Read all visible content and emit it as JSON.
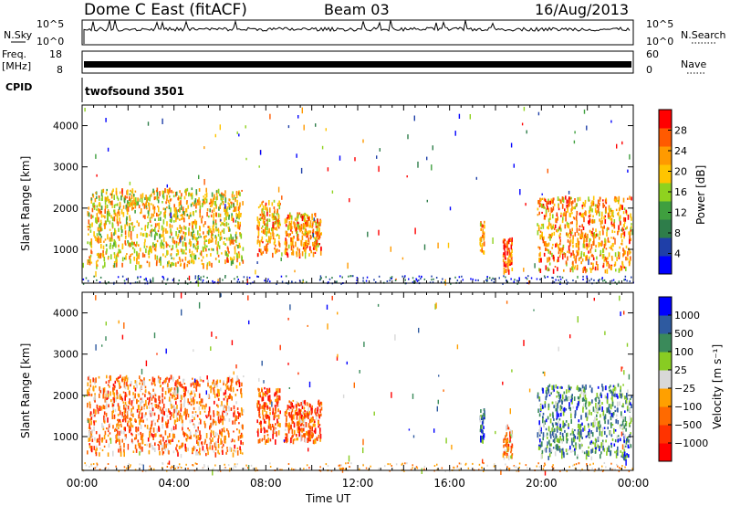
{
  "header": {
    "title": "Dome C East (fitACF)",
    "beam": "Beam 03",
    "date": "16/Aug/2013"
  },
  "top_panels": {
    "nsky_label": "N.Sky",
    "nsearch_label": "N.Search",
    "noise_ticks": [
      "10^5",
      "10^0"
    ],
    "freq_label_1": "Freq.",
    "freq_label_2": "[MHz]",
    "freq_ticks": [
      "18",
      "8"
    ],
    "nave_label": "Nave",
    "nave_ticks": [
      "60",
      "0"
    ],
    "cpid_label": "CPID",
    "cpid_value": "twofsound 3501"
  },
  "colors": {
    "power_scale": [
      "#0000ff",
      "#1f3fa8",
      "#2e7d4a",
      "#3f9f3f",
      "#8fd21f",
      "#ffc400",
      "#ff9a00",
      "#ff5a00",
      "#ff0000"
    ],
    "velocity_scale": [
      "#ff0000",
      "#ff3300",
      "#ff6a00",
      "#ffa000",
      "#d8d8d8",
      "#88cc22",
      "#3a8a5a",
      "#2e5aa0",
      "#0000ff"
    ]
  },
  "chart_data": [
    {
      "type": "heatmap",
      "name": "power",
      "xlabel": "",
      "ylabel": "Slant Range [km]",
      "xlim": [
        0,
        24
      ],
      "ylim": [
        180,
        4500
      ],
      "yticks": [
        1000,
        2000,
        3000,
        4000
      ],
      "colorbar_label": "Power [dB]",
      "colorbar_ticks": [
        "28",
        "24",
        "20",
        "16",
        "12",
        "8",
        "4"
      ],
      "echo_regions": [
        {
          "t0": 0.2,
          "t1": 7.0,
          "r0": 600,
          "r1": 2500,
          "level": 0.62
        },
        {
          "t0": 7.6,
          "t1": 8.6,
          "r0": 900,
          "r1": 2200,
          "level": 0.7
        },
        {
          "t0": 8.8,
          "t1": 10.4,
          "r0": 900,
          "r1": 1900,
          "level": 0.75
        },
        {
          "t0": 17.3,
          "t1": 17.5,
          "r0": 900,
          "r1": 1700,
          "level": 0.7
        },
        {
          "t0": 18.3,
          "t1": 18.7,
          "r0": 500,
          "r1": 1300,
          "level": 0.85
        },
        {
          "t0": 19.8,
          "t1": 23.9,
          "r0": 500,
          "r1": 2300,
          "level": 0.72
        }
      ]
    },
    {
      "type": "heatmap",
      "name": "velocity",
      "xlabel": "Time UT",
      "ylabel": "Slant Range [km]",
      "xlim": [
        0,
        24
      ],
      "ylim": [
        180,
        4500
      ],
      "xticks": [
        "00:00",
        "04:00",
        "08:00",
        "12:00",
        "16:00",
        "20:00",
        "00:00"
      ],
      "yticks": [
        1000,
        2000,
        3000,
        4000
      ],
      "colorbar_label": "Velocity [m s⁻¹]",
      "colorbar_ticks": [
        "1000",
        "500",
        "100",
        "25",
        "−25",
        "−100",
        "−500",
        "−1000"
      ],
      "echo_regions": [
        {
          "t0": 0.2,
          "t1": 7.0,
          "r0": 600,
          "r1": 2500,
          "level": 0.3
        },
        {
          "t0": 7.6,
          "t1": 8.6,
          "r0": 900,
          "r1": 2200,
          "level": 0.25
        },
        {
          "t0": 8.8,
          "t1": 10.4,
          "r0": 900,
          "r1": 1900,
          "level": 0.25
        },
        {
          "t0": 17.3,
          "t1": 17.5,
          "r0": 900,
          "r1": 1700,
          "level": 0.78
        },
        {
          "t0": 18.3,
          "t1": 18.7,
          "r0": 500,
          "r1": 1300,
          "level": 0.35
        },
        {
          "t0": 19.8,
          "t1": 23.9,
          "r0": 500,
          "r1": 2300,
          "level": 0.72
        }
      ]
    }
  ]
}
